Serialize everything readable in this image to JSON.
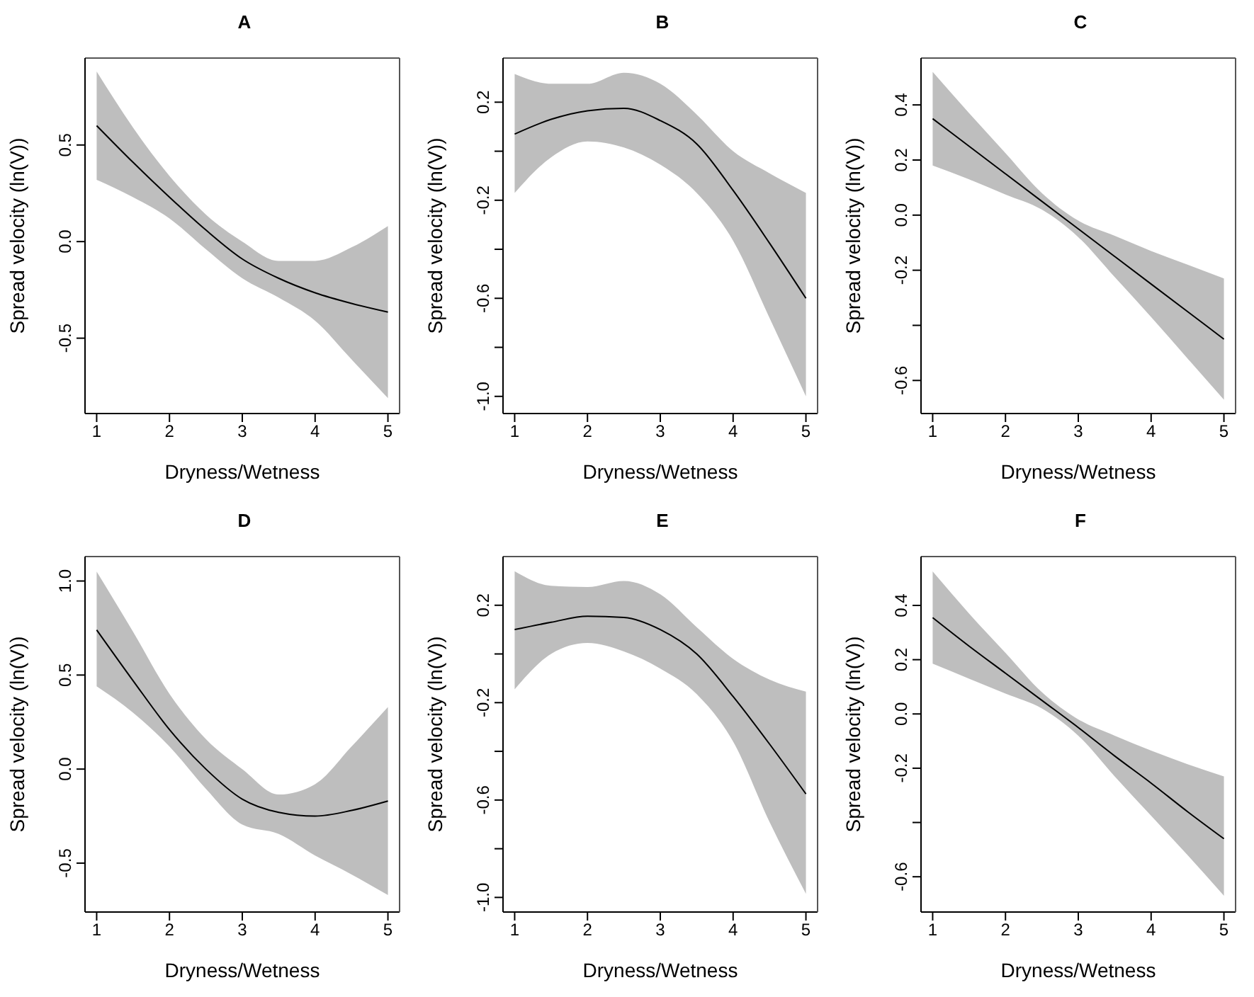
{
  "chart_data": [
    {
      "type": "line",
      "title": "A",
      "xlabel": "Dryness/Wetness",
      "ylabel": "Spread velocity (ln(V))",
      "x": [
        1,
        1.5,
        2,
        2.5,
        3,
        3.5,
        4,
        4.5,
        5
      ],
      "series": [
        {
          "color": "#000000",
          "values": [
            0.6,
            0.41,
            0.23,
            0.06,
            -0.09,
            -0.19,
            -0.265,
            -0.32,
            -0.365
          ],
          "lower": [
            0.32,
            0.23,
            0.12,
            -0.04,
            -0.19,
            -0.29,
            -0.41,
            -0.61,
            -0.81
          ],
          "upper": [
            0.88,
            0.59,
            0.34,
            0.14,
            0.0,
            -0.1,
            -0.1,
            -0.03,
            0.08
          ]
        }
      ],
      "xlim": [
        0.84,
        5.16
      ],
      "ylim": [
        -0.89,
        0.95
      ],
      "xticks": [
        1,
        2,
        3,
        4,
        5
      ],
      "yticks": [
        0.5,
        {
          "value": 0,
          "label": "0.0"
        },
        -0.5
      ]
    },
    {
      "type": "line",
      "title": "B",
      "xlabel": "Dryness/Wetness",
      "ylabel": "Spread velocity (ln(V))",
      "x": [
        1,
        1.5,
        2,
        2.5,
        3,
        3.5,
        4,
        4.5,
        5
      ],
      "series": [
        {
          "color": "#000000",
          "values": [
            0.07,
            0.13,
            0.165,
            0.175,
            0.125,
            0.03,
            -0.16,
            -0.375,
            -0.6
          ],
          "lower": [
            -0.17,
            -0.025,
            0.04,
            0.015,
            -0.055,
            -0.17,
            -0.365,
            -0.68,
            -1.0
          ],
          "upper": [
            0.315,
            0.275,
            0.275,
            0.32,
            0.275,
            0.15,
            0.0,
            -0.09,
            -0.17
          ]
        }
      ],
      "xlim": [
        0.84,
        5.16
      ],
      "ylim": [
        -1.07,
        0.38
      ],
      "xticks": [
        1,
        2,
        3,
        4,
        5
      ],
      "yticks": [
        {
          "value": 0.2,
          "label": "0.2"
        },
        {
          "value": 0,
          "label": null
        },
        {
          "value": -0.2,
          "label": "-0.2"
        },
        {
          "value": -0.4,
          "label": null
        },
        {
          "value": -0.6,
          "label": "-0.6"
        },
        {
          "value": -0.8,
          "label": null
        },
        {
          "value": -1.0,
          "label": "-1.0"
        }
      ]
    },
    {
      "type": "line",
      "title": "C",
      "xlabel": "Dryness/Wetness",
      "ylabel": "Spread velocity (ln(V))",
      "x": [
        1,
        1.5,
        2,
        2.5,
        3,
        3.5,
        4,
        4.5,
        5
      ],
      "series": [
        {
          "color": "#000000",
          "values": [
            0.35,
            0.25,
            0.15,
            0.05,
            -0.05,
            -0.15,
            -0.25,
            -0.35,
            -0.45
          ],
          "lower": [
            0.18,
            0.13,
            0.075,
            0.02,
            -0.08,
            -0.225,
            -0.37,
            -0.52,
            -0.67
          ],
          "upper": [
            0.52,
            0.37,
            0.225,
            0.08,
            -0.02,
            -0.075,
            -0.13,
            -0.18,
            -0.23
          ]
        }
      ],
      "xlim": [
        0.84,
        5.16
      ],
      "ylim": [
        -0.72,
        0.57
      ],
      "xticks": [
        1,
        2,
        3,
        4,
        5
      ],
      "yticks": [
        0.4,
        0.2,
        {
          "value": 0,
          "label": "0.0"
        },
        -0.2,
        {
          "value": -0.4,
          "label": null
        },
        -0.6
      ]
    },
    {
      "type": "line",
      "title": "D",
      "xlabel": "Dryness/Wetness",
      "ylabel": "Spread velocity (ln(V))",
      "x": [
        1,
        1.5,
        2,
        2.5,
        3,
        3.5,
        4,
        4.5,
        5
      ],
      "series": [
        {
          "color": "#000000",
          "values": [
            0.74,
            0.47,
            0.21,
            0.0,
            -0.16,
            -0.23,
            -0.25,
            -0.22,
            -0.17
          ],
          "lower": [
            0.44,
            0.3,
            0.12,
            -0.105,
            -0.295,
            -0.345,
            -0.46,
            -0.56,
            -0.67
          ],
          "upper": [
            1.05,
            0.73,
            0.4,
            0.16,
            0.0,
            -0.135,
            -0.08,
            0.12,
            0.33
          ]
        }
      ],
      "xlim": [
        0.84,
        5.16
      ],
      "ylim": [
        -0.76,
        1.13
      ],
      "xticks": [
        1,
        2,
        3,
        4,
        5
      ],
      "yticks": [
        {
          "value": 1,
          "label": "1.0"
        },
        0.5,
        {
          "value": 0,
          "label": "0.0"
        },
        -0.5
      ]
    },
    {
      "type": "line",
      "title": "E",
      "xlabel": "Dryness/Wetness",
      "ylabel": "Spread velocity (ln(V))",
      "x": [
        1,
        1.5,
        2,
        2.5,
        3,
        3.5,
        4,
        4.5,
        5
      ],
      "series": [
        {
          "color": "#000000",
          "values": [
            0.1,
            0.13,
            0.155,
            0.15,
            0.1,
            0.0,
            -0.175,
            -0.37,
            -0.575
          ],
          "lower": [
            -0.145,
            0.0,
            0.045,
            0.01,
            -0.06,
            -0.165,
            -0.36,
            -0.69,
            -0.985
          ],
          "upper": [
            0.34,
            0.28,
            0.275,
            0.3,
            0.245,
            0.11,
            -0.02,
            -0.105,
            -0.155
          ]
        }
      ],
      "xlim": [
        0.84,
        5.16
      ],
      "ylim": [
        -1.06,
        0.4
      ],
      "xticks": [
        1,
        2,
        3,
        4,
        5
      ],
      "yticks": [
        {
          "value": 0.2,
          "label": "0.2"
        },
        {
          "value": 0,
          "label": null
        },
        {
          "value": -0.2,
          "label": "-0.2"
        },
        {
          "value": -0.4,
          "label": null
        },
        {
          "value": -0.6,
          "label": "-0.6"
        },
        {
          "value": -0.8,
          "label": null
        },
        {
          "value": -1.0,
          "label": "-1.0"
        }
      ]
    },
    {
      "type": "line",
      "title": "F",
      "xlabel": "Dryness/Wetness",
      "ylabel": "Spread velocity (ln(V))",
      "x": [
        1,
        1.5,
        2,
        2.5,
        3,
        3.5,
        4,
        4.5,
        5
      ],
      "series": [
        {
          "color": "#000000",
          "values": [
            0.355,
            0.25,
            0.15,
            0.05,
            -0.05,
            -0.155,
            -0.255,
            -0.36,
            -0.46
          ],
          "lower": [
            0.185,
            0.13,
            0.075,
            0.02,
            -0.08,
            -0.23,
            -0.375,
            -0.52,
            -0.67
          ],
          "upper": [
            0.525,
            0.37,
            0.225,
            0.08,
            -0.02,
            -0.08,
            -0.135,
            -0.185,
            -0.23
          ]
        }
      ],
      "xlim": [
        0.84,
        5.16
      ],
      "ylim": [
        -0.73,
        0.58
      ],
      "xticks": [
        1,
        2,
        3,
        4,
        5
      ],
      "yticks": [
        0.4,
        0.2,
        {
          "value": 0,
          "label": "0.0"
        },
        -0.2,
        {
          "value": -0.4,
          "label": null
        },
        -0.6
      ]
    }
  ]
}
